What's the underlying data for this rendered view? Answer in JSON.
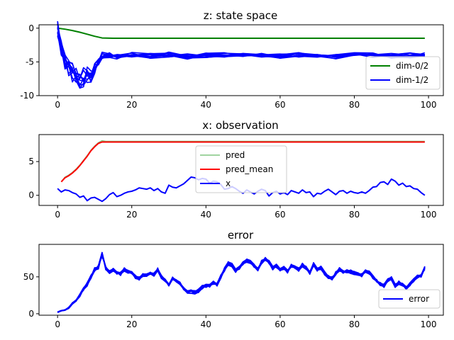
{
  "chart_data": [
    {
      "type": "line",
      "title": "z: state space",
      "xlabel": "",
      "ylabel": "",
      "xlim": [
        -5,
        104
      ],
      "ylim": [
        -10,
        0.5
      ],
      "xticks": [
        0,
        20,
        40,
        60,
        80,
        100
      ],
      "yticks": [
        0,
        -5,
        -10
      ],
      "legend_position": "lower-right",
      "series": [
        {
          "name": "dim-0/2",
          "color": "#008000",
          "x": [
            0,
            2,
            4,
            6,
            8,
            10,
            12,
            15,
            20,
            30,
            40,
            50,
            60,
            70,
            80,
            90,
            99
          ],
          "values": [
            0,
            -0.15,
            -0.35,
            -0.6,
            -0.9,
            -1.2,
            -1.45,
            -1.5,
            -1.5,
            -1.5,
            -1.5,
            -1.5,
            -1.5,
            -1.5,
            -1.5,
            -1.5,
            -1.5
          ]
        },
        {
          "name": "dim-1/2",
          "color": "#0000ff",
          "x": [
            0,
            1,
            2,
            3,
            4,
            5,
            6,
            7,
            8,
            9,
            10,
            11,
            12,
            14,
            16,
            20,
            25,
            30,
            35,
            40,
            45,
            50,
            55,
            60,
            65,
            70,
            75,
            80,
            85,
            90,
            95,
            99
          ],
          "values": [
            0,
            -3,
            -5,
            -6,
            -6.5,
            -7,
            -7.5,
            -7.2,
            -7,
            -7.3,
            -6,
            -5,
            -4,
            -4,
            -4.2,
            -4,
            -4.1,
            -3.9,
            -4.2,
            -4,
            -4,
            -4.1,
            -4,
            -4.2,
            -3.9,
            -4,
            -4.2,
            -4,
            -4,
            -4.1,
            -4,
            -3.9
          ],
          "band": [
            2.5,
            2.5,
            3,
            3,
            3,
            3,
            3,
            3,
            2.5,
            2,
            1.5,
            1,
            1,
            0.8,
            0.8,
            0.8,
            0.8,
            0.8,
            0.8,
            0.8,
            0.8,
            0.8,
            0.8,
            0.8,
            0.8,
            0.8,
            0.8,
            0.8,
            0.8,
            0.8,
            0.8,
            0.8
          ]
        }
      ]
    },
    {
      "type": "line",
      "title": "x: observation",
      "xlabel": "",
      "ylabel": "",
      "xlim": [
        -5,
        104
      ],
      "ylim": [
        -1.5,
        9
      ],
      "xticks": [
        0,
        20,
        40,
        60,
        80,
        100
      ],
      "yticks": [
        0,
        5
      ],
      "legend_position": "center",
      "series": [
        {
          "name": "pred",
          "color": "#2ca02c",
          "x": [
            1,
            2,
            3,
            4,
            5,
            6,
            7,
            8,
            9,
            10,
            11,
            12,
            13,
            14,
            16,
            20,
            25,
            30,
            40,
            50,
            60,
            70,
            80,
            90,
            99
          ],
          "values": [
            2.0,
            2.7,
            3.0,
            3.4,
            3.9,
            4.5,
            5.2,
            5.9,
            6.7,
            7.3,
            7.8,
            8.1,
            8.0,
            8.0,
            8.0,
            8.0,
            8.0,
            8.0,
            8.0,
            8.0,
            8.0,
            8.0,
            8.0,
            8.0,
            8.0
          ]
        },
        {
          "name": "pred_mean",
          "color": "#ff0000",
          "x": [
            1,
            2,
            3,
            4,
            5,
            6,
            7,
            8,
            9,
            10,
            11,
            12,
            13,
            14,
            16,
            20,
            25,
            30,
            40,
            50,
            60,
            70,
            80,
            90,
            99
          ],
          "values": [
            2.0,
            2.6,
            2.9,
            3.3,
            3.8,
            4.4,
            5.1,
            5.8,
            6.6,
            7.2,
            7.7,
            7.9,
            7.9,
            7.9,
            7.9,
            7.9,
            7.9,
            7.9,
            7.9,
            7.9,
            7.9,
            7.9,
            7.9,
            7.9,
            7.9
          ]
        },
        {
          "name": "x",
          "color": "#0000ff",
          "x": [
            0,
            1,
            2,
            3,
            4,
            5,
            6,
            7,
            8,
            9,
            10,
            11,
            12,
            13,
            14,
            15,
            16,
            17,
            18,
            19,
            20,
            21,
            22,
            23,
            24,
            25,
            26,
            27,
            28,
            29,
            30,
            31,
            32,
            33,
            34,
            35,
            36,
            37,
            38,
            39,
            40,
            41,
            42,
            43,
            44,
            45,
            46,
            47,
            48,
            49,
            50,
            51,
            52,
            53,
            54,
            55,
            56,
            57,
            58,
            59,
            60,
            61,
            62,
            63,
            64,
            65,
            66,
            67,
            68,
            69,
            70,
            71,
            72,
            73,
            74,
            75,
            76,
            77,
            78,
            79,
            80,
            81,
            82,
            83,
            84,
            85,
            86,
            87,
            88,
            89,
            90,
            91,
            92,
            93,
            94,
            95,
            96,
            97,
            98,
            99
          ],
          "values": [
            1.0,
            0.5,
            0.8,
            0.7,
            0.4,
            0.2,
            -0.3,
            -0.1,
            -0.8,
            -0.4,
            -0.3,
            -0.6,
            -0.9,
            -0.5,
            0.1,
            0.4,
            -0.2,
            0.0,
            0.3,
            0.5,
            0.6,
            0.8,
            1.1,
            1.0,
            0.9,
            1.1,
            0.7,
            1.0,
            0.5,
            0.3,
            1.5,
            1.2,
            1.1,
            1.4,
            1.7,
            2.2,
            2.7,
            2.6,
            2.3,
            2.5,
            2.4,
            1.8,
            2.1,
            2.0,
            1.6,
            0.9,
            1.0,
            1.3,
            1.0,
            0.6,
            0.3,
            0.8,
            0.5,
            0.2,
            0.6,
            0.9,
            0.7,
            -0.1,
            0.4,
            0.6,
            0.2,
            0.4,
            0.1,
            0.7,
            0.5,
            0.3,
            0.8,
            0.4,
            0.5,
            -0.2,
            0.3,
            0.2,
            0.6,
            0.9,
            0.5,
            0.1,
            0.6,
            0.7,
            0.3,
            0.6,
            0.4,
            0.3,
            0.5,
            0.3,
            0.7,
            1.2,
            1.3,
            1.9,
            2.0,
            1.6,
            2.4,
            2.1,
            1.5,
            1.8,
            1.3,
            1.4,
            1.0,
            0.9,
            0.4,
            0.0
          ]
        }
      ]
    },
    {
      "type": "line",
      "title": "error",
      "xlabel": "",
      "ylabel": "",
      "xlim": [
        -5,
        104
      ],
      "ylim": [
        -2,
        94
      ],
      "xticks": [
        0,
        20,
        40,
        60,
        80,
        100
      ],
      "yticks": [
        0,
        50
      ],
      "legend_position": "lower-right",
      "series": [
        {
          "name": "error",
          "color": "#0000ff",
          "x": [
            0,
            1,
            2,
            3,
            4,
            5,
            6,
            7,
            8,
            9,
            10,
            11,
            12,
            13,
            14,
            15,
            16,
            17,
            18,
            19,
            20,
            21,
            22,
            23,
            24,
            25,
            26,
            27,
            28,
            29,
            30,
            31,
            32,
            33,
            34,
            35,
            36,
            37,
            38,
            39,
            40,
            41,
            42,
            43,
            44,
            45,
            46,
            47,
            48,
            49,
            50,
            51,
            52,
            53,
            54,
            55,
            56,
            57,
            58,
            59,
            60,
            61,
            62,
            63,
            64,
            65,
            66,
            67,
            68,
            69,
            70,
            71,
            72,
            73,
            74,
            75,
            76,
            77,
            78,
            79,
            80,
            81,
            82,
            83,
            84,
            85,
            86,
            87,
            88,
            89,
            90,
            91,
            92,
            93,
            94,
            95,
            96,
            97,
            98,
            99
          ],
          "values": [
            2,
            4,
            5,
            8,
            14,
            18,
            25,
            33,
            40,
            50,
            60,
            63,
            80,
            62,
            57,
            60,
            55,
            54,
            60,
            57,
            55,
            50,
            48,
            52,
            53,
            55,
            53,
            60,
            50,
            45,
            40,
            48,
            45,
            42,
            35,
            30,
            30,
            29,
            31,
            36,
            38,
            38,
            42,
            40,
            50,
            60,
            68,
            66,
            58,
            62,
            68,
            72,
            70,
            65,
            60,
            70,
            74,
            70,
            62,
            65,
            60,
            62,
            57,
            65,
            63,
            60,
            66,
            62,
            55,
            67,
            60,
            62,
            55,
            50,
            48,
            55,
            60,
            56,
            58,
            57,
            55,
            53,
            52,
            58,
            56,
            50,
            45,
            40,
            38,
            45,
            48,
            38,
            42,
            40,
            35,
            40,
            45,
            50,
            52,
            62
          ],
          "band": [
            1,
            1,
            1,
            2,
            2,
            3,
            4,
            5,
            5,
            5,
            5,
            5,
            6,
            5,
            5,
            5,
            5,
            5,
            5,
            5,
            5,
            5,
            5,
            5,
            5,
            5,
            5,
            5,
            5,
            5,
            5,
            5,
            5,
            5,
            5,
            5,
            5,
            5,
            5,
            5,
            5,
            5,
            5,
            5,
            5,
            5,
            5,
            5,
            5,
            5,
            5,
            5,
            5,
            5,
            5,
            5,
            5,
            5,
            5,
            5,
            5,
            5,
            5,
            5,
            5,
            5,
            5,
            5,
            5,
            5,
            5,
            5,
            5,
            5,
            5,
            5,
            5,
            5,
            5,
            5,
            5,
            5,
            5,
            5,
            5,
            5,
            5,
            5,
            5,
            5,
            5,
            5,
            5,
            5,
            5,
            5,
            5,
            5,
            5,
            5
          ]
        }
      ]
    }
  ]
}
